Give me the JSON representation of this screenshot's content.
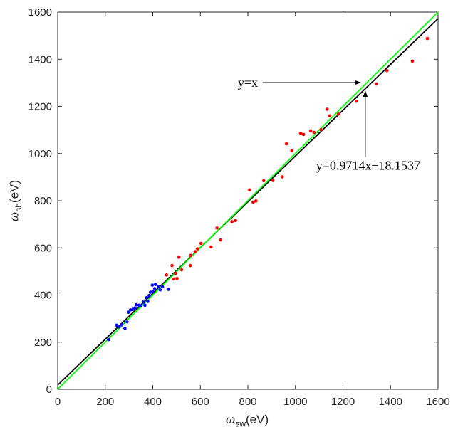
{
  "chart_data": {
    "type": "scatter",
    "title": "",
    "xlabel": {
      "symbol": "ω",
      "sub": "sw",
      "unit": "(eV)"
    },
    "ylabel": {
      "symbol": "ω",
      "sub": "sh",
      "unit": "(eV)"
    },
    "xlim": [
      0,
      1600
    ],
    "ylim": [
      0,
      1600
    ],
    "x_ticks": [
      0,
      200,
      400,
      600,
      800,
      1000,
      1200,
      1400,
      1600
    ],
    "y_ticks": [
      0,
      200,
      400,
      600,
      800,
      1000,
      1200,
      1400,
      1600
    ],
    "grid": false,
    "box": true,
    "colors": {
      "axis": "#262626",
      "tick_label": "#262626",
      "annotation": "#000000"
    },
    "series": [
      {
        "name": "blue-points",
        "color": "#0000ff",
        "marker": "filled-circle",
        "points": [
          [
            214,
            211
          ],
          [
            248,
            272
          ],
          [
            258,
            265
          ],
          [
            270,
            274
          ],
          [
            283,
            259
          ],
          [
            292,
            286
          ],
          [
            298,
            327
          ],
          [
            306,
            337
          ],
          [
            316,
            339
          ],
          [
            325,
            345
          ],
          [
            331,
            359
          ],
          [
            342,
            357
          ],
          [
            349,
            355
          ],
          [
            360,
            370
          ],
          [
            367,
            357
          ],
          [
            374,
            389
          ],
          [
            379,
            373
          ],
          [
            385,
            398
          ],
          [
            390,
            412
          ],
          [
            398,
            442
          ],
          [
            400,
            415
          ],
          [
            408,
            427
          ],
          [
            411,
            445
          ],
          [
            423,
            435
          ],
          [
            431,
            422
          ],
          [
            441,
            435
          ],
          [
            466,
            424
          ]
        ]
      },
      {
        "name": "red-points",
        "color": "#ff0000",
        "marker": "filled-circle",
        "points": [
          [
            458,
            485
          ],
          [
            481,
            525
          ],
          [
            487,
            468
          ],
          [
            496,
            492
          ],
          [
            502,
            470
          ],
          [
            510,
            560
          ],
          [
            521,
            507
          ],
          [
            558,
            525
          ],
          [
            560,
            568
          ],
          [
            578,
            584
          ],
          [
            588,
            596
          ],
          [
            603,
            619
          ],
          [
            645,
            604
          ],
          [
            670,
            684
          ],
          [
            685,
            634
          ],
          [
            733,
            711
          ],
          [
            748,
            716
          ],
          [
            807,
            846
          ],
          [
            822,
            794
          ],
          [
            834,
            799
          ],
          [
            867,
            885
          ],
          [
            905,
            886
          ],
          [
            945,
            901
          ],
          [
            962,
            1041
          ],
          [
            985,
            1012
          ],
          [
            1022,
            1086
          ],
          [
            1034,
            1081
          ],
          [
            1064,
            1096
          ],
          [
            1078,
            1090
          ],
          [
            1108,
            1101
          ],
          [
            1133,
            1188
          ],
          [
            1144,
            1160
          ],
          [
            1181,
            1167
          ],
          [
            1256,
            1222
          ],
          [
            1340,
            1295
          ],
          [
            1385,
            1352
          ],
          [
            1492,
            1392
          ],
          [
            1555,
            1488
          ]
        ]
      }
    ],
    "lines": [
      {
        "name": "fit-line",
        "label": "y=0.9714x+18.1537",
        "color": "#000000",
        "slope": 0.9714,
        "intercept": 18.1537,
        "width": 1.8
      },
      {
        "name": "identity-line",
        "label": "y=x",
        "color": "#00ff00",
        "slope": 1,
        "intercept": 0,
        "width": 1.8
      }
    ],
    "annotations": [
      {
        "name": "identity-annotation",
        "text": "y=x",
        "text_x": 842,
        "text_y": 1301,
        "anchor": "end",
        "arrow_from": [
          862,
          1301
        ],
        "arrow_to": [
          1277,
          1301
        ]
      },
      {
        "name": "fit-annotation",
        "text": "y=0.9714x+18.1537",
        "text_x": 1306,
        "text_y": 950,
        "anchor": "middle",
        "arrow_from": [
          1294,
          985
        ],
        "arrow_to": [
          1294,
          1268
        ]
      }
    ]
  }
}
